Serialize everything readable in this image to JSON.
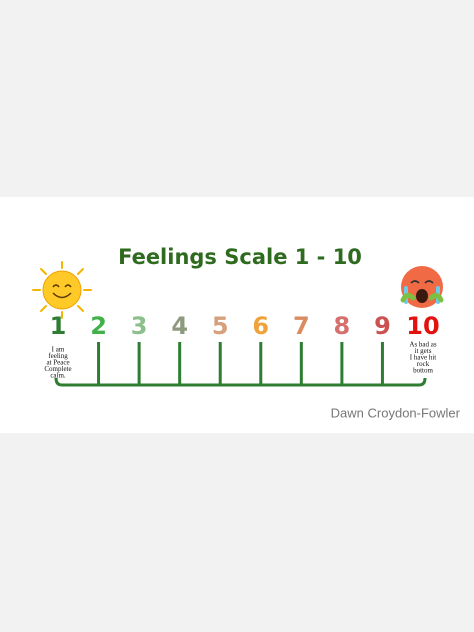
{
  "title": "Feelings Scale 1 - 10",
  "scale": [
    {
      "label": "1",
      "color": "#2e7d32"
    },
    {
      "label": "2",
      "color": "#43b14b"
    },
    {
      "label": "3",
      "color": "#8cbf8c"
    },
    {
      "label": "4",
      "color": "#8d9a7e"
    },
    {
      "label": "5",
      "color": "#d6a07c"
    },
    {
      "label": "6",
      "color": "#f0a23a"
    },
    {
      "label": "7",
      "color": "#d98b62"
    },
    {
      "label": "8",
      "color": "#d6706f"
    },
    {
      "label": "9",
      "color": "#cc5252"
    },
    {
      "label": "10",
      "color": "#e3120f"
    }
  ],
  "left_note": [
    "I am",
    "feeling",
    "at Peace",
    "Complete",
    "calm."
  ],
  "right_note": [
    "As bad as",
    "it gets",
    "I have hit",
    "rock",
    "bottom"
  ],
  "credit": "Dawn Croydon-Fowler"
}
